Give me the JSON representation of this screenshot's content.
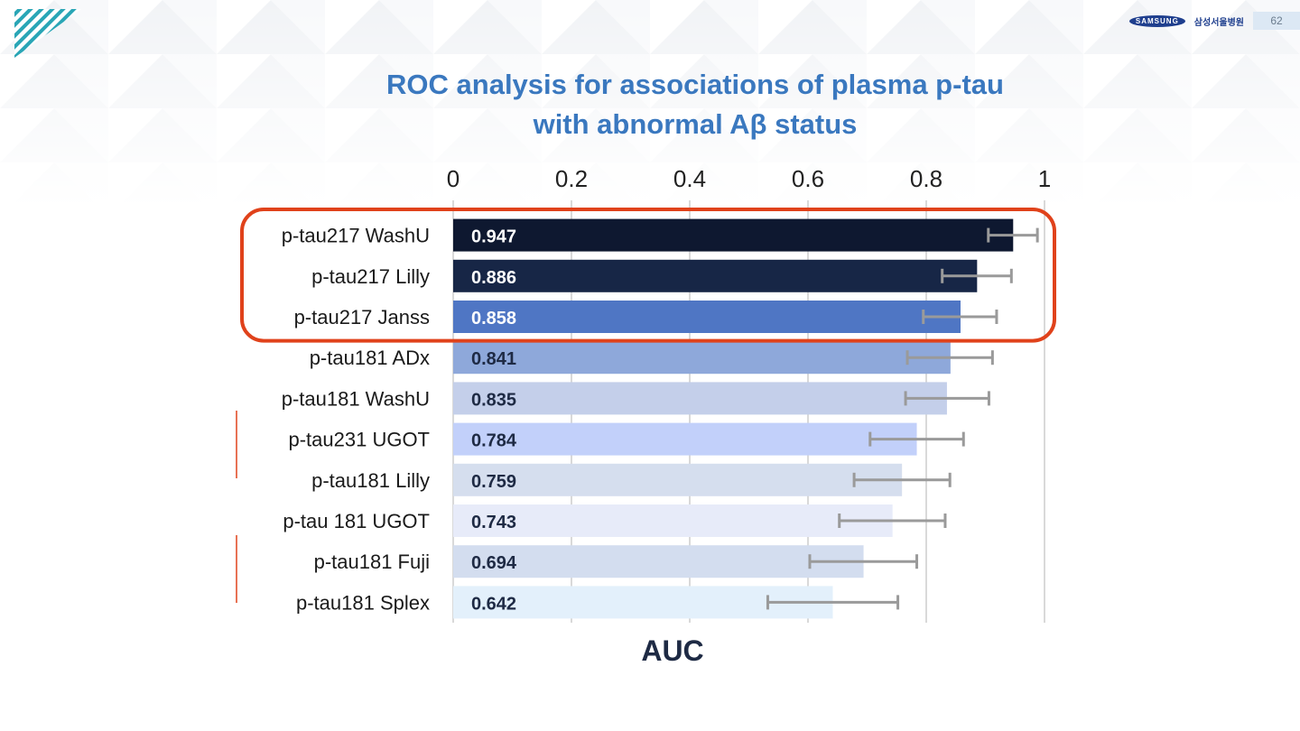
{
  "header": {
    "brand": "SAMSUNG",
    "hospital": "삼성서울병원",
    "page_number": "62"
  },
  "title_lines": [
    "ROC analysis for associations of plasma p-tau",
    "with abnormal Aβ status"
  ],
  "colors": {
    "title": "#3a78bf",
    "highlight_box": "#e0421b",
    "error_bar": "#9a9a9a",
    "grid": "#d9d9d9"
  },
  "chart_data": {
    "type": "bar",
    "orientation": "horizontal",
    "xlabel": "AUC",
    "xlim": [
      0,
      1
    ],
    "x_ticks": [
      "0",
      "0.2",
      "0.4",
      "0.6",
      "0.8",
      "1"
    ],
    "x_tick_values": [
      0,
      0.2,
      0.4,
      0.6,
      0.8,
      1
    ],
    "axis_position": "top",
    "grid": true,
    "categories": [
      "p-tau217 WashU",
      "p-tau217 Lilly",
      "p-tau217 Janss",
      "p-tau181 ADx",
      "p-tau181 WashU",
      "p-tau231 UGOT",
      "p-tau181 Lilly",
      "p-tau 181 UGOT",
      "p-tau181 Fuji",
      "p-tau181 Splex"
    ],
    "values": [
      0.947,
      0.886,
      0.858,
      0.841,
      0.835,
      0.784,
      0.759,
      0.743,
      0.694,
      0.642
    ],
    "data_labels": [
      "0.947",
      "0.886",
      "0.858",
      "0.841",
      "0.835",
      "0.784",
      "0.759",
      "0.743",
      "0.694",
      "0.642"
    ],
    "ci_lower": [
      0.905,
      0.827,
      0.795,
      0.768,
      0.765,
      0.705,
      0.678,
      0.653,
      0.603,
      0.532
    ],
    "ci_upper": [
      0.988,
      0.944,
      0.919,
      0.912,
      0.906,
      0.863,
      0.84,
      0.832,
      0.784,
      0.752
    ],
    "bar_colors": [
      "#0e1830",
      "#172646",
      "#4f76c4",
      "#8ea8da",
      "#c4cfea",
      "#c2d0fa",
      "#d5deee",
      "#e7ebf9",
      "#d3ddef",
      "#e3f0fb"
    ],
    "label_colors": [
      "#ffffff",
      "#ffffff",
      "#ffffff",
      "#1e2a44",
      "#1e2a44",
      "#1e2a44",
      "#1e2a44",
      "#1e2a44",
      "#1e2a44",
      "#1e2a44"
    ],
    "highlighted_categories": [
      "p-tau217 WashU",
      "p-tau217 Lilly",
      "p-tau217 Janss"
    ]
  }
}
